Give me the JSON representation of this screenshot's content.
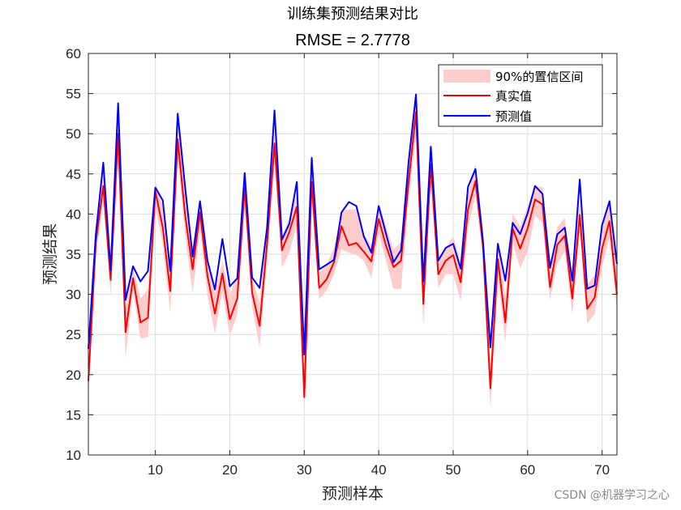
{
  "chart_data": {
    "type": "line",
    "title": "训练集预测结果对比",
    "subtitle": "RMSE = 2.7778",
    "xlabel": "预测样本",
    "ylabel": "预测结果",
    "xlim": [
      1,
      72
    ],
    "ylim": [
      10,
      60
    ],
    "xticks": [
      10,
      20,
      30,
      40,
      50,
      60,
      70
    ],
    "yticks": [
      10,
      15,
      20,
      25,
      30,
      35,
      40,
      45,
      50,
      55,
      60
    ],
    "grid": true,
    "legend_position": "top-right",
    "x": [
      1,
      2,
      3,
      4,
      5,
      6,
      7,
      8,
      9,
      10,
      11,
      12,
      13,
      14,
      15,
      16,
      17,
      18,
      19,
      20,
      21,
      22,
      23,
      24,
      25,
      26,
      27,
      28,
      29,
      30,
      31,
      32,
      33,
      34,
      35,
      36,
      37,
      38,
      39,
      40,
      41,
      42,
      43,
      44,
      45,
      46,
      47,
      48,
      49,
      50,
      51,
      52,
      53,
      54,
      55,
      56,
      57,
      58,
      59,
      60,
      61,
      62,
      63,
      64,
      65,
      66,
      67,
      68,
      69,
      70,
      71,
      72
    ],
    "series": [
      {
        "name": "真实值",
        "color": "#ff0000",
        "values": [
          19.2,
          36.5,
          43.5,
          31.8,
          50.0,
          25.3,
          32.0,
          26.5,
          27.1,
          42.8,
          38.3,
          30.4,
          49.3,
          39.8,
          33.1,
          40.2,
          32.3,
          27.6,
          32.6,
          26.9,
          29.5,
          43.3,
          30.2,
          26.1,
          36.3,
          48.8,
          35.5,
          37.8,
          40.9,
          17.2,
          44.0,
          30.8,
          31.9,
          34.0,
          38.5,
          36.1,
          36.4,
          35.3,
          34.1,
          39.4,
          36.0,
          33.4,
          34.2,
          43.9,
          52.7,
          28.8,
          46.2,
          32.5,
          34.2,
          34.9,
          31.5,
          40.6,
          44.1,
          36.1,
          18.3,
          34.4,
          26.5,
          38.2,
          35.7,
          38.2,
          41.8,
          41.2,
          30.9,
          36.2,
          37.3,
          29.5,
          39.9,
          28.2,
          29.6,
          35.7,
          39.1,
          30.0
        ]
      },
      {
        "name": "预测值",
        "color": "#0000ff",
        "values": [
          23.2,
          37.5,
          46.4,
          33.0,
          53.8,
          29.3,
          33.5,
          31.6,
          32.9,
          43.3,
          41.7,
          32.9,
          52.5,
          43.3,
          34.7,
          41.6,
          34.2,
          30.6,
          36.9,
          31.0,
          32.0,
          45.1,
          32.1,
          30.8,
          38.3,
          52.9,
          36.8,
          38.8,
          44.0,
          22.5,
          47.0,
          33.1,
          33.7,
          34.3,
          40.2,
          41.5,
          41.0,
          37.2,
          35.2,
          41.0,
          37.5,
          34.0,
          35.5,
          46.4,
          54.9,
          31.6,
          48.4,
          34.2,
          35.8,
          36.3,
          33.2,
          43.4,
          45.6,
          36.7,
          23.4,
          36.3,
          31.7,
          38.9,
          37.5,
          40.1,
          43.5,
          42.5,
          33.3,
          37.5,
          38.3,
          31.7,
          44.3,
          30.7,
          31.1,
          38.6,
          41.6,
          33.8
        ]
      },
      {
        "name": "90%的置信区间",
        "color": "#ffcccc",
        "upper": [
          21.2,
          37.2,
          45.2,
          33.4,
          52.2,
          28.2,
          33.4,
          29.5,
          30.6,
          44.0,
          41.0,
          32.5,
          51.5,
          43.4,
          35.9,
          41.9,
          34.1,
          30.2,
          34.1,
          30.0,
          32.3,
          45.0,
          32.1,
          29.0,
          38.6,
          50.8,
          37.2,
          39.6,
          42.8,
          20.0,
          45.6,
          32.7,
          33.7,
          35.8,
          40.4,
          40.6,
          40.6,
          37.5,
          36.1,
          41.5,
          38.4,
          35.6,
          36.5,
          46.3,
          54.9,
          31.5,
          48.2,
          34.5,
          35.8,
          37.2,
          34.1,
          42.5,
          46.2,
          38.0,
          21.5,
          36.8,
          29.6,
          40.1,
          38.4,
          41.0,
          43.4,
          43.4,
          33.4,
          38.4,
          39.5,
          32.4,
          42.1,
          31.2,
          32.4,
          38.1,
          41.5,
          32.7
        ],
        "lower": [
          17.6,
          34.8,
          41.7,
          29.9,
          47.4,
          22.1,
          30.5,
          24.5,
          24.7,
          40.9,
          36.2,
          27.6,
          47.0,
          37.5,
          30.1,
          38.1,
          29.9,
          25.1,
          30.3,
          24.9,
          27.5,
          41.2,
          28.4,
          23.4,
          34.3,
          46.3,
          33.3,
          35.2,
          38.6,
          15.4,
          42.2,
          29.4,
          30.5,
          32.5,
          35.6,
          35.2,
          34.9,
          34.2,
          32.0,
          37.6,
          34.1,
          30.7,
          30.7,
          41.7,
          49.7,
          26.1,
          44.3,
          30.8,
          32.5,
          32.5,
          29.2,
          38.3,
          42.3,
          34.5,
          15.8,
          32.3,
          23.9,
          36.4,
          33.3,
          35.3,
          39.8,
          38.9,
          29.3,
          33.9,
          35.4,
          27.5,
          37.6,
          26.4,
          27.5,
          33.4,
          37.0,
          28.0
        ]
      }
    ]
  },
  "legend": {
    "items": [
      "90%的置信区间",
      "真实值",
      "预测值"
    ]
  },
  "watermark": "CSDN @机器学习之心"
}
